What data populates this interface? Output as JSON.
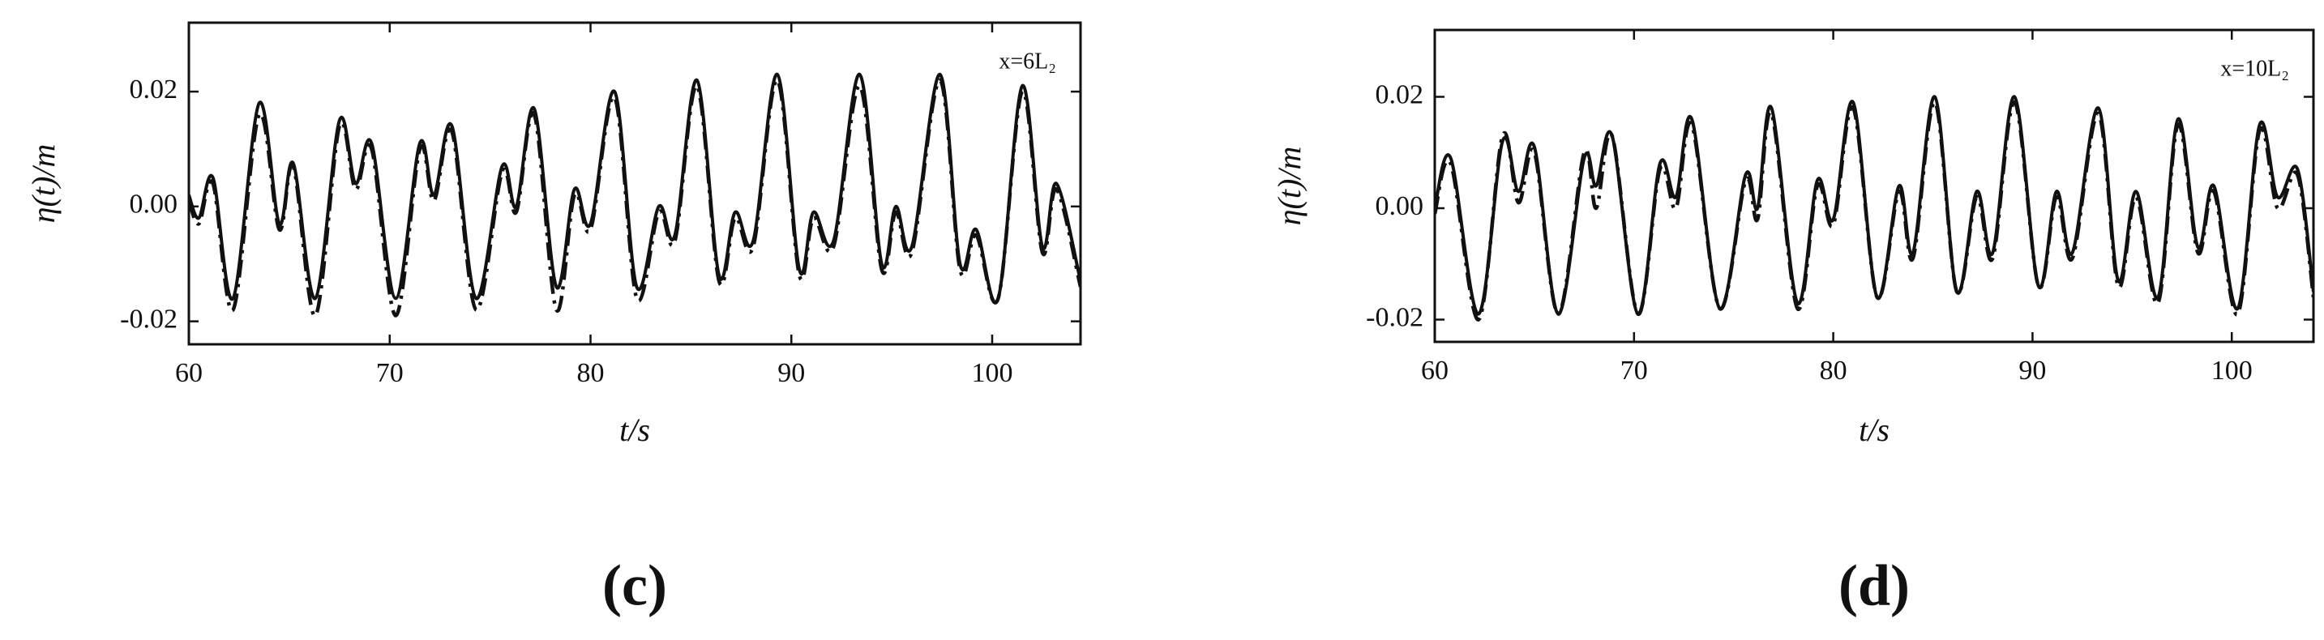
{
  "chart_data": [
    {
      "type": "line",
      "annotation": "x=6L₂",
      "panel_label": "(c)",
      "x_label": "t/s",
      "y_label": "η(t)/m",
      "xlim": [
        60,
        104.4
      ],
      "ylim": [
        -0.024,
        0.032
      ],
      "xticks": [
        60,
        70,
        80,
        90,
        100
      ],
      "yticks": [
        -0.02,
        {
          "value": 0,
          "label": "0.00"
        },
        0.02
      ],
      "x": [
        60,
        60.5,
        61.2,
        62.2,
        63.5,
        64.5,
        65.2,
        66.3,
        67.5,
        68.3,
        69.1,
        70.3,
        71.5,
        72.2,
        73.1,
        74.3,
        75.6,
        76.3,
        77.2,
        78.3,
        79.2,
        80,
        81.2,
        82.3,
        83.4,
        84.2,
        85.3,
        86.4,
        87.2,
        88.1,
        89.3,
        90.4,
        91.1,
        92.1,
        93.4,
        94.5,
        95.2,
        96,
        97.4,
        98.4,
        99.2,
        100.3,
        101.5,
        102.5,
        103.2,
        104.4
      ],
      "series": [
        {
          "color": "#111111",
          "dash": "solid",
          "values": [
            0.002,
            -0.002,
            0.005,
            -0.016,
            0.018,
            -0.003,
            0.0075,
            -0.016,
            0.015,
            0.004,
            0.011,
            -0.016,
            0.011,
            0.002,
            0.014,
            -0.016,
            0.007,
            0.0,
            0.017,
            -0.014,
            0.003,
            -0.003,
            0.02,
            -0.014,
            0.0,
            -0.005,
            0.022,
            -0.012,
            -0.001,
            -0.006,
            0.023,
            -0.011,
            -0.001,
            -0.006,
            0.023,
            -0.01,
            0.0,
            -0.007,
            0.023,
            -0.01,
            -0.004,
            -0.016,
            0.021,
            -0.007,
            0.004,
            -0.013
          ]
        },
        {
          "color": "#111111",
          "dash": "dashdot",
          "values": [
            0.001,
            -0.003,
            0.004,
            -0.018,
            0.016,
            -0.004,
            0.007,
            -0.019,
            0.014,
            0.003,
            0.01,
            -0.019,
            0.01,
            0.001,
            0.013,
            -0.018,
            0.006,
            -0.001,
            0.016,
            -0.018,
            0.002,
            -0.004,
            0.019,
            -0.016,
            -0.001,
            -0.006,
            0.021,
            -0.013,
            -0.002,
            -0.007,
            0.022,
            -0.012,
            -0.002,
            -0.007,
            0.021,
            -0.011,
            -0.001,
            -0.008,
            0.022,
            -0.011,
            -0.005,
            -0.016,
            0.02,
            -0.008,
            0.003,
            -0.014
          ]
        }
      ]
    },
    {
      "type": "line",
      "annotation": "x=10L₂",
      "panel_label": "(d)",
      "x_label": "t/s",
      "y_label": "η(t)/m",
      "xlim": [
        60,
        104.1
      ],
      "ylim": [
        -0.024,
        0.032
      ],
      "xticks": [
        60,
        70,
        80,
        90,
        100
      ],
      "yticks": [
        -0.02,
        {
          "value": 0,
          "label": "0.00"
        },
        0.02
      ],
      "x": [
        60,
        60.8,
        62.2,
        63.4,
        64.2,
        65,
        66.2,
        67.5,
        68.1,
        68.9,
        70.2,
        71.3,
        72.1,
        72.9,
        74.3,
        75.6,
        76.2,
        76.9,
        78.2,
        79.2,
        80,
        81,
        82.2,
        83.3,
        84,
        85.1,
        86.2,
        87.2,
        88,
        89.1,
        90.3,
        91.2,
        92,
        93.3,
        94.3,
        95.2,
        96.3,
        97.3,
        98.3,
        99.1,
        100.3,
        101.4,
        102.3,
        103.3,
        104.1
      ],
      "series": [
        {
          "color": "#111111",
          "dash": "solid",
          "values": [
            0.0,
            0.009,
            -0.019,
            0.012,
            0.003,
            0.011,
            -0.019,
            0.009,
            0.004,
            0.013,
            -0.019,
            0.008,
            0.002,
            0.016,
            -0.018,
            0.006,
            0.0,
            0.018,
            -0.017,
            0.005,
            -0.002,
            0.019,
            -0.016,
            0.004,
            -0.008,
            0.02,
            -0.015,
            0.003,
            -0.008,
            0.02,
            -0.014,
            0.003,
            -0.008,
            0.018,
            -0.013,
            0.003,
            -0.016,
            0.016,
            -0.007,
            0.004,
            -0.018,
            0.015,
            0.002,
            0.007,
            -0.015
          ]
        },
        {
          "color": "#111111",
          "dash": "dashdot",
          "values": [
            -0.001,
            0.008,
            -0.02,
            0.013,
            0.001,
            0.01,
            -0.019,
            0.01,
            0.0,
            0.013,
            -0.019,
            0.007,
            0.0,
            0.015,
            -0.018,
            0.005,
            -0.002,
            0.017,
            -0.018,
            0.004,
            -0.003,
            0.018,
            -0.016,
            0.003,
            -0.009,
            0.019,
            -0.015,
            0.002,
            -0.009,
            0.019,
            -0.014,
            0.002,
            -0.009,
            0.017,
            -0.014,
            0.002,
            -0.017,
            0.015,
            -0.008,
            0.003,
            -0.019,
            0.014,
            0.0,
            0.006,
            -0.016
          ]
        }
      ]
    }
  ]
}
